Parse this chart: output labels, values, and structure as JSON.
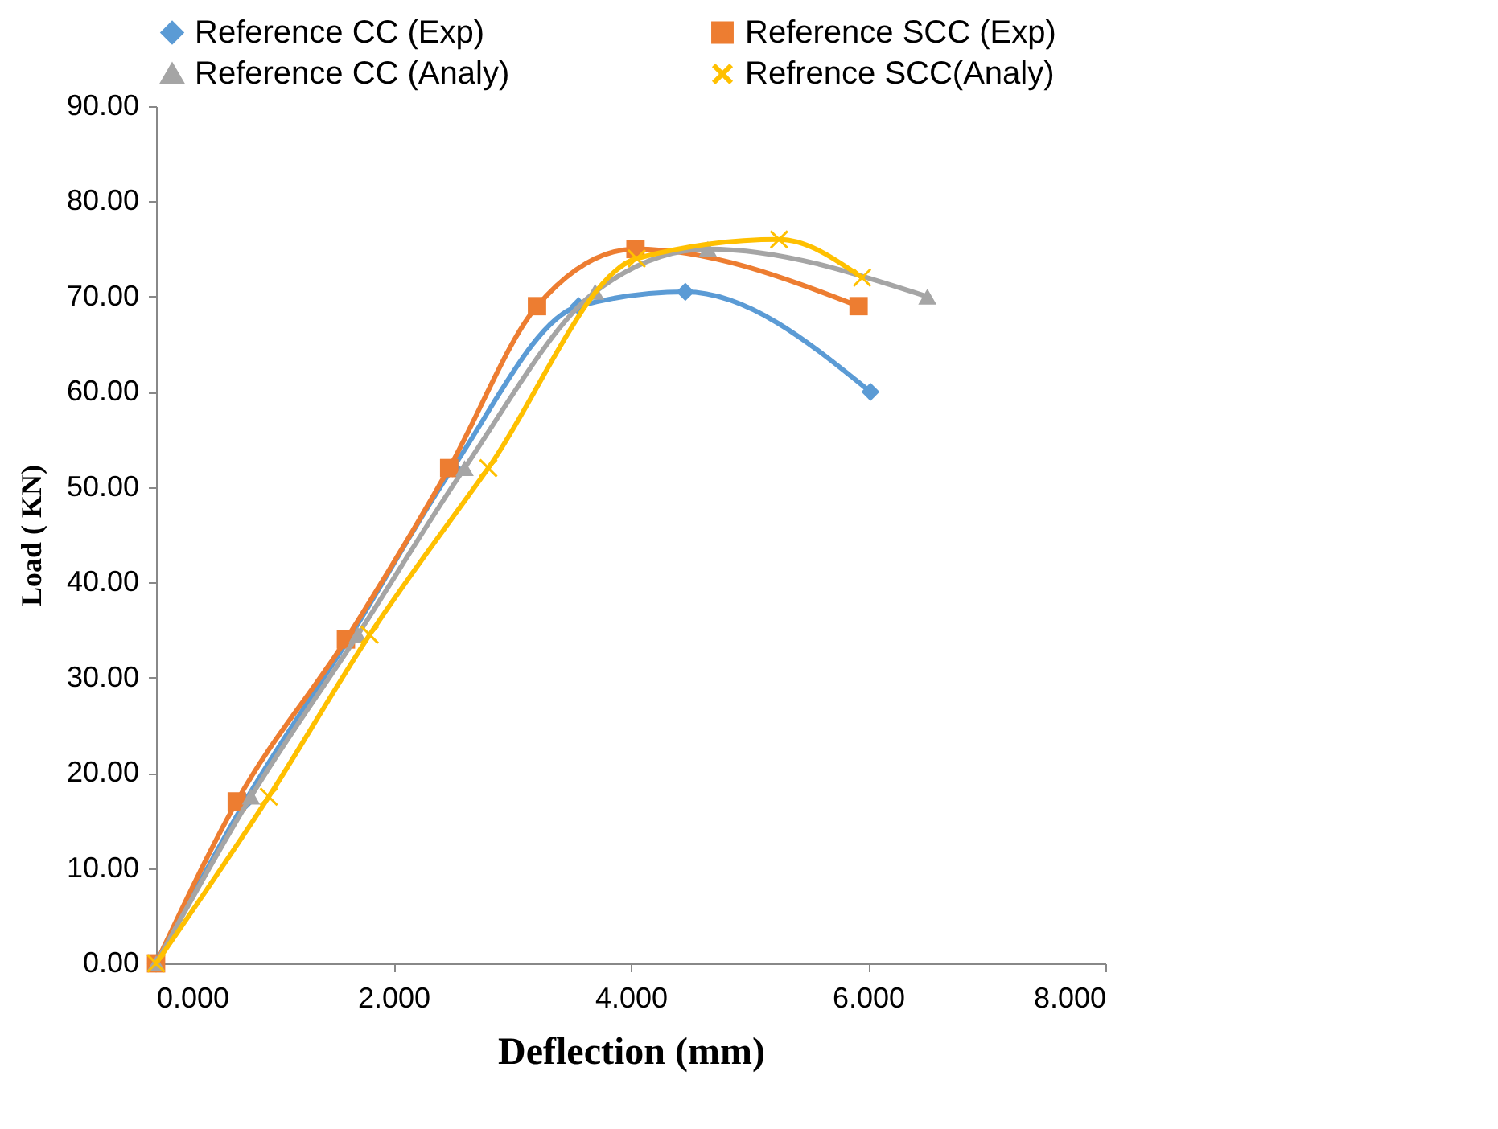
{
  "chart_data": {
    "type": "line",
    "xlabel": "Deflection (mm)",
    "ylabel": "Load ( KN)",
    "xlim": [
      0,
      8
    ],
    "xticks": [
      {
        "value": 0,
        "label": "0.000"
      },
      {
        "value": 2,
        "label": "2.000"
      },
      {
        "value": 4,
        "label": "4.000"
      },
      {
        "value": 6,
        "label": "6.000"
      },
      {
        "value": 8,
        "label": "8.000"
      }
    ],
    "ylim": [
      0,
      90
    ],
    "yticks": [
      {
        "value": 0,
        "label": "0.00"
      },
      {
        "value": 10,
        "label": "10.00"
      },
      {
        "value": 20,
        "label": "20.00"
      },
      {
        "value": 30,
        "label": "30.00"
      },
      {
        "value": 40,
        "label": "40.00"
      },
      {
        "value": 50,
        "label": "50.00"
      },
      {
        "value": 60,
        "label": "60.00"
      },
      {
        "value": 70,
        "label": "70.00"
      },
      {
        "value": 80,
        "label": "80.00"
      },
      {
        "value": 90,
        "label": "90.00"
      }
    ],
    "grid": false,
    "legend": "top",
    "line_style": "solid",
    "series": [
      {
        "name": "Reference CC (Exp)",
        "color": "#5b9bd5",
        "marker": "diamond",
        "x": [
          0,
          0.75,
          1.62,
          2.5,
          3.56,
          4.46,
          6.02
        ],
        "values": [
          0,
          17,
          34,
          52,
          69,
          70.5,
          60
        ]
      },
      {
        "name": "Reference SCC (Exp)",
        "color": "#ed7d31",
        "marker": "square",
        "x": [
          0,
          0.68,
          1.6,
          2.47,
          3.21,
          4.04,
          5.92
        ],
        "values": [
          0,
          17,
          34,
          52,
          69,
          75,
          69
        ]
      },
      {
        "name": "Reference CC (Analy)",
        "color": "#a5a5a5",
        "marker": "triangle",
        "x": [
          0,
          0.8,
          1.7,
          2.6,
          3.7,
          4.65,
          6.5
        ],
        "values": [
          0,
          17.5,
          34.5,
          52,
          70.5,
          75,
          70
        ]
      },
      {
        "name": "Refrence SCC(Analy)",
        "color": "#ffc000",
        "marker": "cross",
        "x": [
          0,
          0.95,
          1.8,
          2.8,
          4.05,
          5.25,
          5.95
        ],
        "values": [
          0,
          17.5,
          34.5,
          52,
          74,
          76,
          72
        ]
      }
    ]
  }
}
